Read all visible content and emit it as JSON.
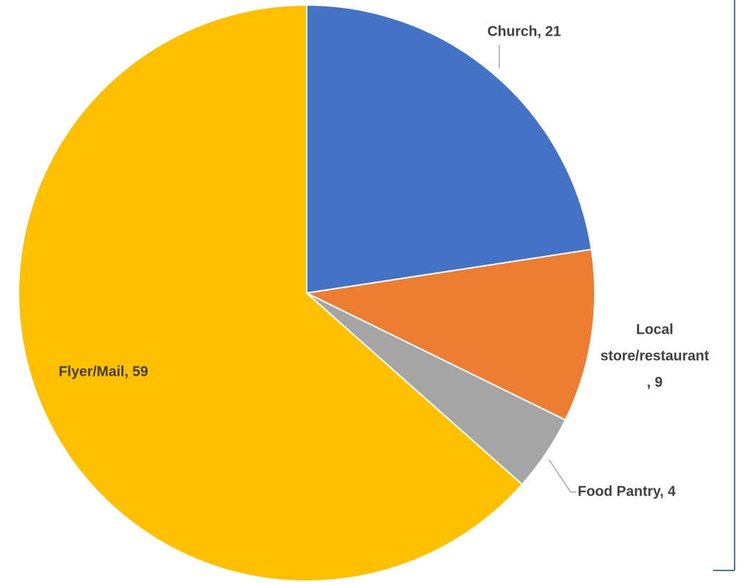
{
  "chart_data": {
    "type": "pie",
    "categories": [
      "Church",
      "Local store/restaurant",
      "Food Pantry",
      "Flyer/Mail"
    ],
    "values": [
      21,
      9,
      4,
      59
    ],
    "value_labels": [
      [
        "Church, 21"
      ],
      [
        "Local",
        "store/restaurant",
        ", 9"
      ],
      [
        "Food Pantry, 4"
      ],
      [
        "Flyer/Mail, 59"
      ]
    ],
    "colors": [
      "#4472c4",
      "#ed7d31",
      "#a5a5a5",
      "#ffc000"
    ]
  }
}
